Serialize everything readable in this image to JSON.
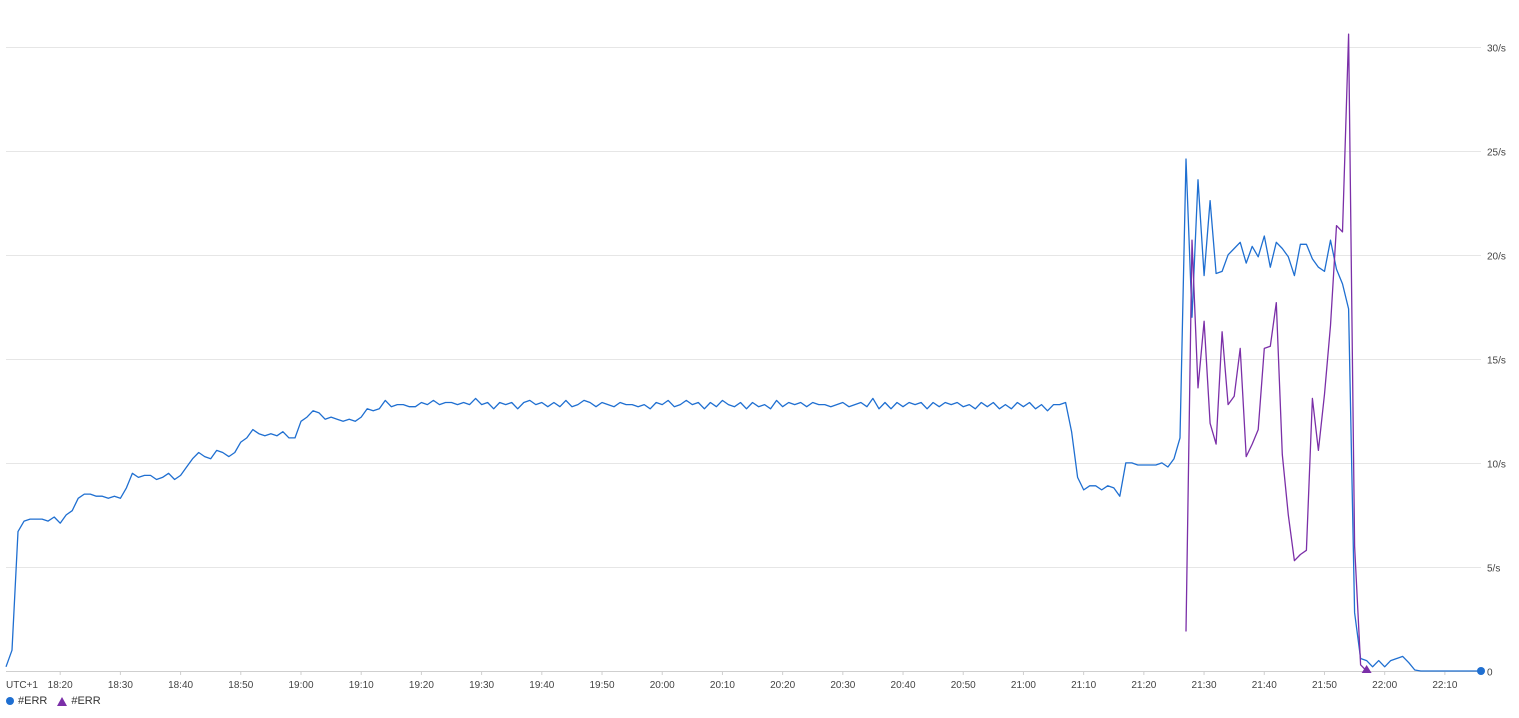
{
  "chart_data": {
    "type": "line",
    "timezone_label": "UTC+1",
    "x_unit": "minutes",
    "x_range": [
      "18:11",
      "22:16"
    ],
    "y_range": [
      0,
      32
    ],
    "y_ticks": [
      {
        "value": 0,
        "label": "0"
      },
      {
        "value": 5,
        "label": "5/s"
      },
      {
        "value": 10,
        "label": "10/s"
      },
      {
        "value": 15,
        "label": "15/s"
      },
      {
        "value": 20,
        "label": "20/s"
      },
      {
        "value": 25,
        "label": "25/s"
      },
      {
        "value": 30,
        "label": "30/s"
      }
    ],
    "x_ticks": [
      "18:20",
      "18:30",
      "18:40",
      "18:50",
      "19:00",
      "19:10",
      "19:20",
      "19:30",
      "19:40",
      "19:50",
      "20:00",
      "20:10",
      "20:20",
      "20:30",
      "20:40",
      "20:50",
      "21:00",
      "21:10",
      "21:20",
      "21:30",
      "21:40",
      "21:50",
      "22:00",
      "22:10"
    ],
    "grid": "horizontal",
    "legend_position": "bottom-left",
    "series": [
      {
        "name": "#ERR",
        "color": "#1f6fd1",
        "marker": "circle",
        "points": [
          [
            "18:11",
            0.2
          ],
          [
            "18:12",
            1.0
          ],
          [
            "18:13",
            6.7
          ],
          [
            "18:14",
            7.2
          ],
          [
            "18:15",
            7.3
          ],
          [
            "18:16",
            7.3
          ],
          [
            "18:17",
            7.3
          ],
          [
            "18:18",
            7.2
          ],
          [
            "18:19",
            7.4
          ],
          [
            "18:20",
            7.1
          ],
          [
            "18:21",
            7.5
          ],
          [
            "18:22",
            7.7
          ],
          [
            "18:23",
            8.3
          ],
          [
            "18:24",
            8.5
          ],
          [
            "18:25",
            8.5
          ],
          [
            "18:26",
            8.4
          ],
          [
            "18:27",
            8.4
          ],
          [
            "18:28",
            8.3
          ],
          [
            "18:29",
            8.4
          ],
          [
            "18:30",
            8.3
          ],
          [
            "18:31",
            8.8
          ],
          [
            "18:32",
            9.5
          ],
          [
            "18:33",
            9.3
          ],
          [
            "18:34",
            9.4
          ],
          [
            "18:35",
            9.4
          ],
          [
            "18:36",
            9.2
          ],
          [
            "18:37",
            9.3
          ],
          [
            "18:38",
            9.5
          ],
          [
            "18:39",
            9.2
          ],
          [
            "18:40",
            9.4
          ],
          [
            "18:41",
            9.8
          ],
          [
            "18:42",
            10.2
          ],
          [
            "18:43",
            10.5
          ],
          [
            "18:44",
            10.3
          ],
          [
            "18:45",
            10.2
          ],
          [
            "18:46",
            10.6
          ],
          [
            "18:47",
            10.5
          ],
          [
            "18:48",
            10.3
          ],
          [
            "18:49",
            10.5
          ],
          [
            "18:50",
            11.0
          ],
          [
            "18:51",
            11.2
          ],
          [
            "18:52",
            11.6
          ],
          [
            "18:53",
            11.4
          ],
          [
            "18:54",
            11.3
          ],
          [
            "18:55",
            11.4
          ],
          [
            "18:56",
            11.3
          ],
          [
            "18:57",
            11.5
          ],
          [
            "18:58",
            11.2
          ],
          [
            "18:59",
            11.2
          ],
          [
            "19:00",
            12.0
          ],
          [
            "19:01",
            12.2
          ],
          [
            "19:02",
            12.5
          ],
          [
            "19:03",
            12.4
          ],
          [
            "19:04",
            12.1
          ],
          [
            "19:05",
            12.2
          ],
          [
            "19:06",
            12.1
          ],
          [
            "19:07",
            12.0
          ],
          [
            "19:08",
            12.1
          ],
          [
            "19:09",
            12.0
          ],
          [
            "19:10",
            12.2
          ],
          [
            "19:11",
            12.6
          ],
          [
            "19:12",
            12.5
          ],
          [
            "19:13",
            12.6
          ],
          [
            "19:14",
            13.0
          ],
          [
            "19:15",
            12.7
          ],
          [
            "19:16",
            12.8
          ],
          [
            "19:17",
            12.8
          ],
          [
            "19:18",
            12.7
          ],
          [
            "19:19",
            12.7
          ],
          [
            "19:20",
            12.9
          ],
          [
            "19:21",
            12.8
          ],
          [
            "19:22",
            13.0
          ],
          [
            "19:23",
            12.8
          ],
          [
            "19:24",
            12.9
          ],
          [
            "19:25",
            12.9
          ],
          [
            "19:26",
            12.8
          ],
          [
            "19:27",
            12.9
          ],
          [
            "19:28",
            12.8
          ],
          [
            "19:29",
            13.1
          ],
          [
            "19:30",
            12.8
          ],
          [
            "19:31",
            12.9
          ],
          [
            "19:32",
            12.6
          ],
          [
            "19:33",
            12.9
          ],
          [
            "19:34",
            12.8
          ],
          [
            "19:35",
            12.9
          ],
          [
            "19:36",
            12.6
          ],
          [
            "19:37",
            12.9
          ],
          [
            "19:38",
            13.0
          ],
          [
            "19:39",
            12.8
          ],
          [
            "19:40",
            12.9
          ],
          [
            "19:41",
            12.7
          ],
          [
            "19:42",
            12.9
          ],
          [
            "19:43",
            12.7
          ],
          [
            "19:44",
            13.0
          ],
          [
            "19:45",
            12.7
          ],
          [
            "19:46",
            12.8
          ],
          [
            "19:47",
            13.0
          ],
          [
            "19:48",
            12.9
          ],
          [
            "19:49",
            12.7
          ],
          [
            "19:50",
            12.9
          ],
          [
            "19:51",
            12.8
          ],
          [
            "19:52",
            12.7
          ],
          [
            "19:53",
            12.9
          ],
          [
            "19:54",
            12.8
          ],
          [
            "19:55",
            12.8
          ],
          [
            "19:56",
            12.7
          ],
          [
            "19:57",
            12.8
          ],
          [
            "19:58",
            12.6
          ],
          [
            "19:59",
            12.9
          ],
          [
            "20:00",
            12.8
          ],
          [
            "20:01",
            13.0
          ],
          [
            "20:02",
            12.7
          ],
          [
            "20:03",
            12.8
          ],
          [
            "20:04",
            13.0
          ],
          [
            "20:05",
            12.8
          ],
          [
            "20:06",
            12.9
          ],
          [
            "20:07",
            12.6
          ],
          [
            "20:08",
            12.9
          ],
          [
            "20:09",
            12.7
          ],
          [
            "20:10",
            13.0
          ],
          [
            "20:11",
            12.8
          ],
          [
            "20:12",
            12.7
          ],
          [
            "20:13",
            12.9
          ],
          [
            "20:14",
            12.6
          ],
          [
            "20:15",
            12.9
          ],
          [
            "20:16",
            12.7
          ],
          [
            "20:17",
            12.8
          ],
          [
            "20:18",
            12.6
          ],
          [
            "20:19",
            13.0
          ],
          [
            "20:20",
            12.7
          ],
          [
            "20:21",
            12.9
          ],
          [
            "20:22",
            12.8
          ],
          [
            "20:23",
            12.9
          ],
          [
            "20:24",
            12.7
          ],
          [
            "20:25",
            12.9
          ],
          [
            "20:26",
            12.8
          ],
          [
            "20:27",
            12.8
          ],
          [
            "20:28",
            12.7
          ],
          [
            "20:29",
            12.8
          ],
          [
            "20:30",
            12.9
          ],
          [
            "20:31",
            12.7
          ],
          [
            "20:32",
            12.8
          ],
          [
            "20:33",
            12.9
          ],
          [
            "20:34",
            12.7
          ],
          [
            "20:35",
            13.1
          ],
          [
            "20:36",
            12.6
          ],
          [
            "20:37",
            12.9
          ],
          [
            "20:38",
            12.6
          ],
          [
            "20:39",
            12.9
          ],
          [
            "20:40",
            12.7
          ],
          [
            "20:41",
            12.9
          ],
          [
            "20:42",
            12.8
          ],
          [
            "20:43",
            12.9
          ],
          [
            "20:44",
            12.6
          ],
          [
            "20:45",
            12.9
          ],
          [
            "20:46",
            12.7
          ],
          [
            "20:47",
            12.9
          ],
          [
            "20:48",
            12.8
          ],
          [
            "20:49",
            12.9
          ],
          [
            "20:50",
            12.7
          ],
          [
            "20:51",
            12.8
          ],
          [
            "20:52",
            12.6
          ],
          [
            "20:53",
            12.9
          ],
          [
            "20:54",
            12.7
          ],
          [
            "20:55",
            12.9
          ],
          [
            "20:56",
            12.6
          ],
          [
            "20:57",
            12.8
          ],
          [
            "20:58",
            12.6
          ],
          [
            "20:59",
            12.9
          ],
          [
            "21:00",
            12.7
          ],
          [
            "21:01",
            12.9
          ],
          [
            "21:02",
            12.6
          ],
          [
            "21:03",
            12.8
          ],
          [
            "21:04",
            12.5
          ],
          [
            "21:05",
            12.8
          ],
          [
            "21:06",
            12.8
          ],
          [
            "21:07",
            12.9
          ],
          [
            "21:08",
            11.5
          ],
          [
            "21:09",
            9.3
          ],
          [
            "21:10",
            8.7
          ],
          [
            "21:11",
            8.9
          ],
          [
            "21:12",
            8.9
          ],
          [
            "21:13",
            8.7
          ],
          [
            "21:14",
            8.9
          ],
          [
            "21:15",
            8.8
          ],
          [
            "21:16",
            8.4
          ],
          [
            "21:17",
            10.0
          ],
          [
            "21:18",
            10.0
          ],
          [
            "21:19",
            9.9
          ],
          [
            "21:20",
            9.9
          ],
          [
            "21:21",
            9.9
          ],
          [
            "21:22",
            9.9
          ],
          [
            "21:23",
            10.0
          ],
          [
            "21:24",
            9.8
          ],
          [
            "21:25",
            10.2
          ],
          [
            "21:26",
            11.2
          ],
          [
            "21:27",
            24.6
          ],
          [
            "21:28",
            17.0
          ],
          [
            "21:29",
            23.6
          ],
          [
            "21:30",
            19.0
          ],
          [
            "21:31",
            22.6
          ],
          [
            "21:32",
            19.1
          ],
          [
            "21:33",
            19.2
          ],
          [
            "21:34",
            20.0
          ],
          [
            "21:35",
            20.3
          ],
          [
            "21:36",
            20.6
          ],
          [
            "21:37",
            19.6
          ],
          [
            "21:38",
            20.4
          ],
          [
            "21:39",
            19.9
          ],
          [
            "21:40",
            20.9
          ],
          [
            "21:41",
            19.4
          ],
          [
            "21:42",
            20.6
          ],
          [
            "21:43",
            20.3
          ],
          [
            "21:44",
            19.9
          ],
          [
            "21:45",
            19.0
          ],
          [
            "21:46",
            20.5
          ],
          [
            "21:47",
            20.5
          ],
          [
            "21:48",
            19.8
          ],
          [
            "21:49",
            19.4
          ],
          [
            "21:50",
            19.2
          ],
          [
            "21:51",
            20.7
          ],
          [
            "21:52",
            19.3
          ],
          [
            "21:53",
            18.6
          ],
          [
            "21:54",
            17.4
          ],
          [
            "21:55",
            2.8
          ],
          [
            "21:56",
            0.6
          ],
          [
            "21:57",
            0.5
          ],
          [
            "21:58",
            0.2
          ],
          [
            "21:59",
            0.5
          ],
          [
            "22:00",
            0.2
          ],
          [
            "22:01",
            0.5
          ],
          [
            "22:02",
            0.6
          ],
          [
            "22:03",
            0.7
          ],
          [
            "22:04",
            0.4
          ],
          [
            "22:05",
            0.05
          ],
          [
            "22:06",
            0.0
          ],
          [
            "22:07",
            0.0
          ],
          [
            "22:08",
            0.0
          ],
          [
            "22:09",
            0.0
          ],
          [
            "22:10",
            0.0
          ],
          [
            "22:11",
            0.0
          ],
          [
            "22:12",
            0.0
          ],
          [
            "22:13",
            0.0
          ],
          [
            "22:14",
            0.0
          ],
          [
            "22:15",
            0.0
          ],
          [
            "22:16",
            0.0
          ]
        ]
      },
      {
        "name": "#ERR",
        "color": "#7b2fa8",
        "marker": "triangle",
        "points": [
          [
            "21:27",
            1.9
          ],
          [
            "21:28",
            20.7
          ],
          [
            "21:29",
            13.6
          ],
          [
            "21:30",
            16.8
          ],
          [
            "21:31",
            11.9
          ],
          [
            "21:32",
            10.9
          ],
          [
            "21:33",
            16.3
          ],
          [
            "21:34",
            12.8
          ],
          [
            "21:35",
            13.2
          ],
          [
            "21:36",
            15.5
          ],
          [
            "21:37",
            10.3
          ],
          [
            "21:38",
            10.9
          ],
          [
            "21:39",
            11.6
          ],
          [
            "21:40",
            15.5
          ],
          [
            "21:41",
            15.6
          ],
          [
            "21:42",
            17.7
          ],
          [
            "21:43",
            10.4
          ],
          [
            "21:44",
            7.5
          ],
          [
            "21:45",
            5.3
          ],
          [
            "21:46",
            5.6
          ],
          [
            "21:47",
            5.8
          ],
          [
            "21:48",
            13.1
          ],
          [
            "21:49",
            10.6
          ],
          [
            "21:50",
            13.3
          ],
          [
            "21:51",
            16.6
          ],
          [
            "21:52",
            21.4
          ],
          [
            "21:53",
            21.1
          ],
          [
            "21:54",
            30.6
          ],
          [
            "21:55",
            6.0
          ],
          [
            "21:56",
            0.3
          ],
          [
            "21:57",
            0.0
          ]
        ]
      }
    ]
  },
  "legend": {
    "items": [
      {
        "label": "#ERR",
        "color": "#1f6fd1",
        "marker": "circle"
      },
      {
        "label": "#ERR",
        "color": "#7b2fa8",
        "marker": "triangle"
      }
    ]
  }
}
